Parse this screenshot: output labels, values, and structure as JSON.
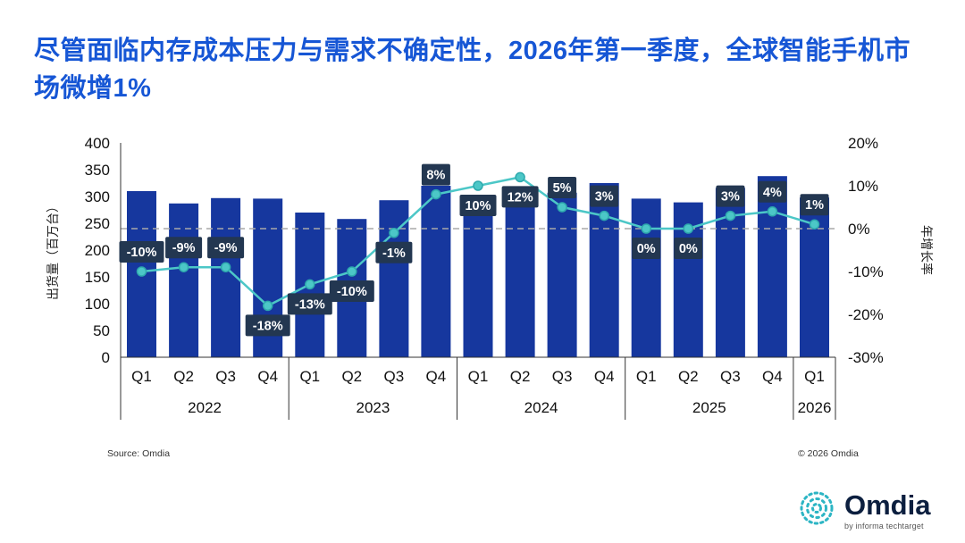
{
  "page": {
    "title_text": "尽管面临内存成本压力与需求不确定性，2026年第一季度，全球智能手机市场微增1%"
  },
  "footer": {
    "source": "Source: Omdia",
    "copyright": "© 2026 Omdia"
  },
  "logo": {
    "brand": "Omdia",
    "tagline": "by informa techtarget"
  },
  "chart_data": {
    "type": "bar",
    "subtype": "bar-with-line-overlay",
    "categories": [
      "Q1",
      "Q2",
      "Q3",
      "Q4",
      "Q1",
      "Q2",
      "Q3",
      "Q4",
      "Q1",
      "Q2",
      "Q3",
      "Q4",
      "Q1",
      "Q2",
      "Q3",
      "Q4",
      "Q1"
    ],
    "year_groups": [
      {
        "label": "2022",
        "count": 4
      },
      {
        "label": "2023",
        "count": 4
      },
      {
        "label": "2024",
        "count": 4
      },
      {
        "label": "2025",
        "count": 4
      },
      {
        "label": "2026",
        "count": 1
      }
    ],
    "series": [
      {
        "name": "出货量",
        "type": "bar",
        "values": [
          310,
          287,
          297,
          296,
          270,
          258,
          293,
          320,
          296,
          289,
          307,
          325,
          296,
          289,
          316,
          338,
          298
        ]
      },
      {
        "name": "年增长率",
        "type": "line",
        "values": [
          -10,
          -9,
          -9,
          -18,
          -13,
          -10,
          -1,
          8,
          10,
          12,
          5,
          3,
          0,
          0,
          3,
          4,
          1
        ],
        "labels": [
          "-10%",
          "-9%",
          "-9%",
          "-18%",
          "-13%",
          "-10%",
          "-1%",
          "8%",
          "10%",
          "12%",
          "5%",
          "3%",
          "0%",
          "0%",
          "3%",
          "4%",
          "1%"
        ],
        "label_positions": [
          "above",
          "above",
          "above",
          "below",
          "below",
          "below",
          "below",
          "above",
          "below",
          "below",
          "above",
          "above",
          "below",
          "below",
          "above",
          "above",
          "above"
        ]
      }
    ],
    "ylabel_left": "出货量（百万台）",
    "ylabel_right": "年增长率",
    "ylim_left": [
      0,
      400
    ],
    "yticks_left": [
      0,
      50,
      100,
      150,
      200,
      250,
      300,
      350,
      400
    ],
    "ylim_right": [
      -30,
      20
    ],
    "yticks_right": [
      {
        "v": 20,
        "label": "20%"
      },
      {
        "v": 10,
        "label": "10%"
      },
      {
        "v": 0,
        "label": "0%"
      },
      {
        "v": -10,
        "label": "-10%"
      },
      {
        "v": -20,
        "label": "-20%"
      },
      {
        "v": -30,
        "label": "-30%"
      }
    ],
    "zero_line_dashed": true,
    "grid": false,
    "legend": "none",
    "colors": {
      "bar": "#16379e",
      "line": "#4cc7c7",
      "marker_stroke": "#2ea9ad",
      "label_box": "#233751",
      "label_text": "#ffffff",
      "title": "#1656d5",
      "zero_line": "#a8a8a8"
    }
  }
}
